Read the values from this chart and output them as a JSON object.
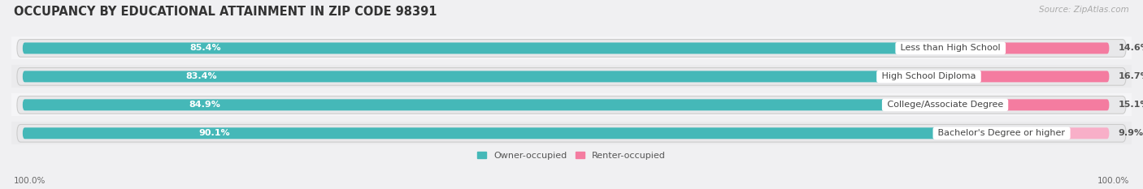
{
  "title": "OCCUPANCY BY EDUCATIONAL ATTAINMENT IN ZIP CODE 98391",
  "source": "Source: ZipAtlas.com",
  "categories": [
    "Less than High School",
    "High School Diploma",
    "College/Associate Degree",
    "Bachelor's Degree or higher"
  ],
  "owner_pct": [
    85.4,
    83.4,
    84.9,
    90.1
  ],
  "renter_pct": [
    14.6,
    16.7,
    15.1,
    9.9
  ],
  "owner_color": "#45b8b8",
  "renter_color": "#f47ca0",
  "renter_color_last": "#f8afc8",
  "track_color": "#e8e8ea",
  "row_bg_colors": [
    "#f5f5f7",
    "#ebebed",
    "#f5f5f7",
    "#ebebed"
  ],
  "bg_color": "#f0f0f2",
  "title_fontsize": 10.5,
  "source_fontsize": 7.5,
  "label_fontsize": 8,
  "cat_fontsize": 8,
  "legend_fontsize": 8,
  "axis_label_fontsize": 7.5,
  "x_left_label": "100.0%",
  "x_right_label": "100.0%",
  "legend_owner": "Owner-occupied",
  "legend_renter": "Renter-occupied"
}
